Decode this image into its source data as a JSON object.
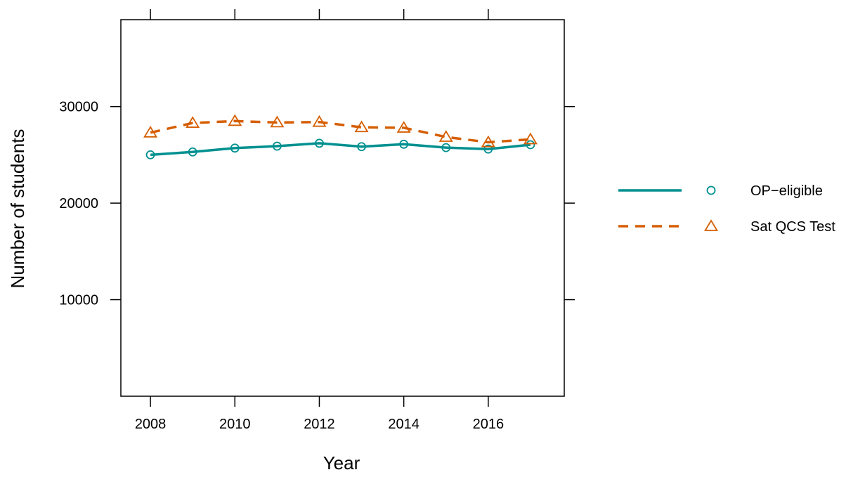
{
  "chart_data": {
    "type": "line",
    "title": "",
    "xlabel": "Year",
    "ylabel": "Number of students",
    "xlim": [
      2007.3,
      2017.8
    ],
    "ylim": [
      0,
      39000
    ],
    "x_ticks": [
      2008,
      2010,
      2012,
      2014,
      2016
    ],
    "y_ticks": [
      10000,
      20000,
      30000
    ],
    "x_tick_labels": [
      "2008",
      "2010",
      "2012",
      "2014",
      "2016"
    ],
    "y_tick_labels": [
      "10000",
      "20000",
      "30000"
    ],
    "grid": false,
    "legend_position": "right",
    "series": [
      {
        "name": "OP−eligible",
        "color": "#009090",
        "line_style": "solid",
        "marker": "circle",
        "x": [
          2008,
          2009,
          2010,
          2011,
          2012,
          2013,
          2014,
          2015,
          2016,
          2017
        ],
        "values": [
          25000,
          25300,
          25700,
          25900,
          26200,
          25850,
          26100,
          25750,
          25600,
          26050
        ]
      },
      {
        "name": "Sat QCS Test",
        "color": "#D55E00",
        "line_style": "dashed",
        "marker": "triangle",
        "x": [
          2008,
          2009,
          2010,
          2011,
          2012,
          2013,
          2014,
          2015,
          2016,
          2017
        ],
        "values": [
          27300,
          28300,
          28500,
          28350,
          28400,
          27850,
          27800,
          26850,
          26300,
          26600
        ]
      }
    ]
  }
}
